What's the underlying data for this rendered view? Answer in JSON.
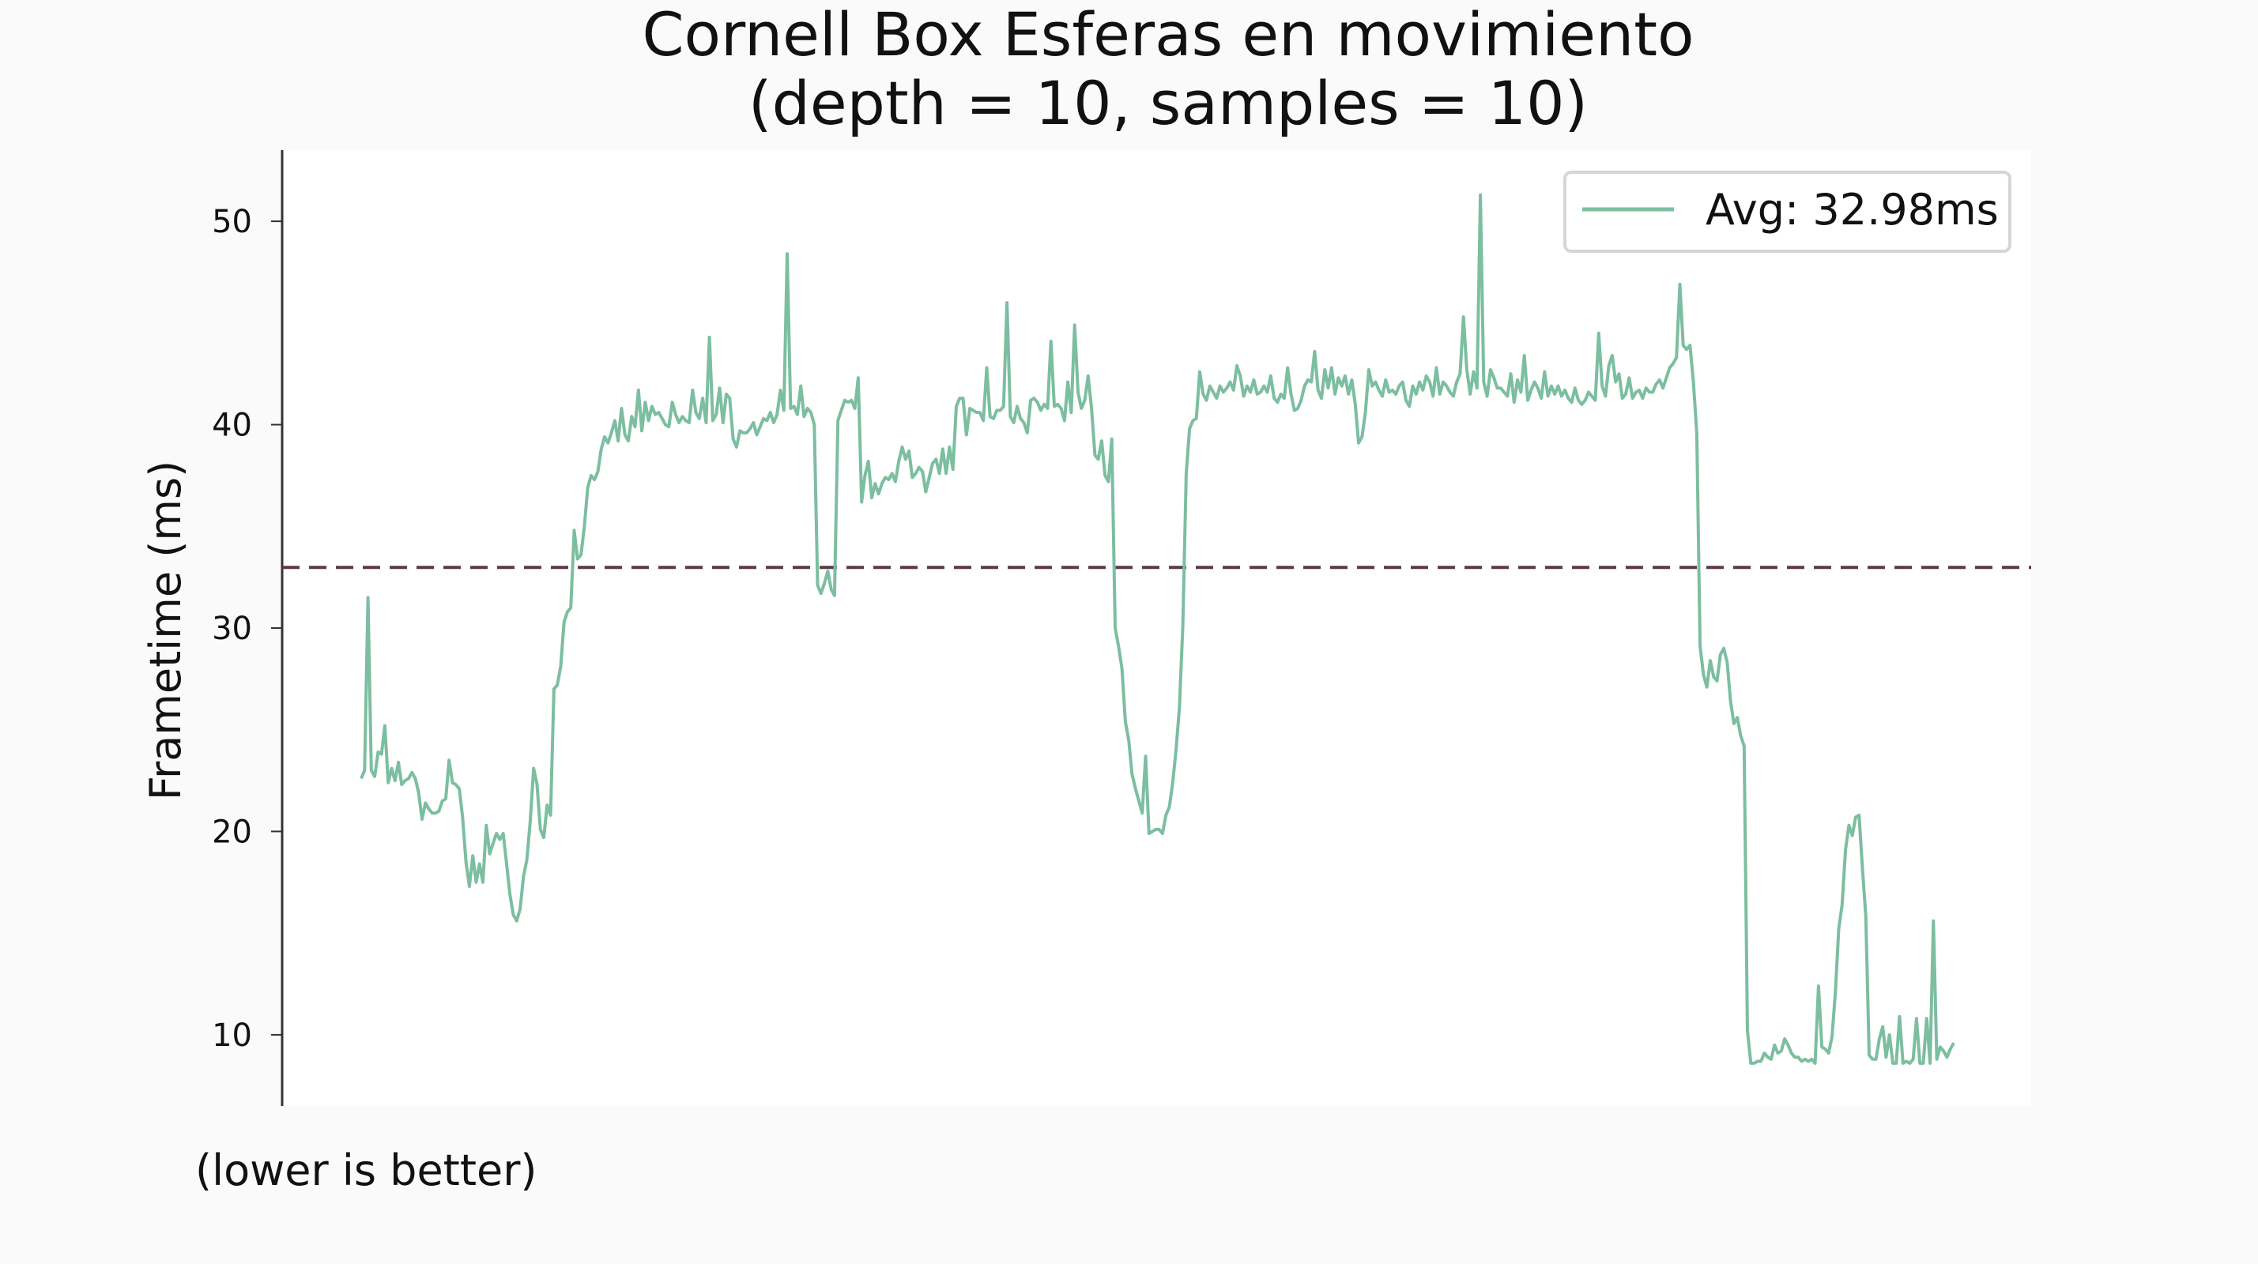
{
  "colors": {
    "background": "#fafafa",
    "plot_background": "#ffffff",
    "series": "#7cbea0",
    "average_line": "#5a3a4a",
    "axis": "#333333"
  },
  "chart_data": {
    "type": "line",
    "title": "Cornell Box Esferas en movimiento",
    "subtitle": "(depth = 10, samples = 10)",
    "ylabel": "Frametime (ms)",
    "xlabel": "",
    "note": "(lower is better)",
    "ylim": [
      6.5,
      53.5
    ],
    "yticks": [
      "10",
      "20",
      "30",
      "40",
      "50"
    ],
    "x_ticks_shown": false,
    "grid": false,
    "legend_position": "top-right",
    "average": 32.98,
    "series": [
      {
        "name": "Avg: 32.98ms",
        "x_count": 500,
        "values": [
          22.6,
          23.0,
          31.5,
          23.0,
          22.7,
          23.9,
          23.8,
          25.2,
          22.4,
          23.1,
          22.5,
          23.4,
          22.3,
          22.5,
          22.6,
          22.9,
          22.6,
          21.9,
          20.6,
          21.4,
          21.1,
          20.9,
          20.9,
          21.0,
          21.5,
          21.6,
          23.5,
          22.4,
          22.3,
          22.1,
          20.7,
          18.5,
          17.3,
          18.8,
          17.5,
          18.4,
          17.5,
          20.3,
          18.9,
          19.4,
          19.9,
          19.6,
          19.9,
          18.4,
          16.9,
          15.9,
          15.6,
          16.2,
          17.8,
          18.6,
          20.5,
          23.1,
          22.3,
          20.1,
          19.7,
          21.3,
          20.8,
          27.0,
          27.2,
          28.1,
          30.3,
          30.8,
          31.0,
          34.8,
          33.4,
          33.6,
          35.0,
          36.9,
          37.5,
          37.3,
          37.7,
          38.8,
          39.4,
          39.1,
          39.6,
          40.2,
          39.2,
          40.8,
          39.5,
          39.2,
          40.4,
          39.9,
          41.7,
          39.7,
          41.1,
          40.2,
          40.9,
          40.5,
          40.6,
          40.3,
          40.0,
          39.9,
          41.1,
          40.5,
          40.1,
          40.4,
          40.2,
          40.1,
          41.7,
          40.6,
          40.3,
          41.3,
          40.1,
          44.3,
          40.2,
          40.5,
          41.8,
          40.1,
          41.5,
          41.3,
          39.3,
          38.9,
          39.7,
          39.6,
          39.6,
          39.8,
          40.1,
          39.5,
          39.9,
          40.3,
          40.2,
          40.6,
          40.1,
          40.5,
          41.7,
          40.7,
          48.4,
          40.8,
          40.9,
          40.5,
          41.9,
          40.4,
          40.8,
          40.6,
          40.0,
          32.1,
          31.7,
          32.2,
          32.8,
          31.9,
          31.6,
          40.2,
          40.7,
          41.2,
          41.1,
          41.2,
          40.8,
          42.3,
          36.2,
          37.5,
          38.2,
          36.4,
          37.1,
          36.6,
          37.1,
          37.4,
          37.3,
          37.6,
          37.2,
          38.2,
          38.9,
          38.3,
          38.7,
          37.4,
          37.6,
          37.9,
          37.7,
          36.7,
          37.4,
          38.1,
          38.3,
          37.6,
          38.8,
          37.6,
          38.9,
          37.8,
          40.9,
          41.3,
          41.3,
          39.5,
          40.8,
          40.7,
          40.6,
          40.6,
          40.2,
          42.8,
          40.4,
          40.3,
          40.7,
          40.7,
          40.9,
          46.0,
          40.4,
          40.1,
          40.9,
          40.3,
          40.1,
          39.6,
          41.2,
          41.3,
          41.1,
          40.7,
          41.0,
          40.8,
          44.1,
          40.9,
          41.0,
          40.8,
          40.2,
          42.1,
          40.6,
          44.9,
          41.6,
          40.8,
          41.2,
          42.4,
          40.8,
          38.5,
          38.3,
          39.2,
          37.5,
          37.2,
          39.3,
          30.0,
          29.1,
          28.0,
          25.4,
          24.5,
          22.8,
          22.1,
          21.5,
          20.9,
          23.7,
          19.9,
          20.0,
          20.1,
          20.1,
          19.9,
          20.8,
          21.2,
          22.4,
          24.0,
          26.1,
          30.1,
          37.6,
          39.8,
          40.2,
          40.3,
          42.6,
          41.5,
          41.2,
          41.9,
          41.6,
          41.3,
          41.9,
          41.6,
          41.8,
          42.1,
          41.7,
          42.9,
          42.4,
          41.4,
          41.9,
          41.6,
          42.2,
          41.5,
          41.6,
          41.9,
          41.6,
          42.4,
          41.3,
          41.1,
          41.5,
          41.3,
          42.8,
          41.5,
          40.7,
          40.8,
          41.2,
          41.9,
          42.2,
          42.1,
          43.6,
          41.7,
          41.3,
          42.7,
          41.8,
          42.8,
          41.5,
          42.3,
          41.9,
          42.4,
          41.5,
          42.2,
          41.0,
          39.1,
          39.4,
          40.6,
          42.7,
          41.9,
          42.1,
          41.7,
          41.4,
          42.2,
          41.6,
          41.7,
          41.5,
          41.9,
          42.1,
          41.2,
          40.9,
          41.9,
          41.5,
          42.1,
          41.7,
          42.4,
          42.1,
          41.4,
          42.8,
          41.5,
          42.1,
          41.9,
          41.6,
          41.4,
          42.1,
          42.5,
          45.3,
          42.7,
          41.5,
          42.6,
          41.8,
          51.3,
          42.1,
          41.4,
          42.7,
          42.3,
          41.8,
          41.8,
          41.6,
          41.4,
          42.5,
          41.1,
          42.2,
          41.6,
          43.4,
          41.2,
          41.7,
          42.1,
          41.8,
          41.3,
          42.6,
          41.4,
          41.9,
          41.5,
          41.9,
          41.4,
          41.7,
          41.3,
          41.1,
          41.8,
          41.2,
          41.0,
          41.2,
          41.6,
          41.4,
          41.2,
          44.5,
          41.9,
          41.4,
          42.9,
          43.4,
          42.1,
          42.5,
          41.3,
          41.5,
          42.3,
          41.3,
          41.6,
          41.7,
          41.3,
          41.8,
          41.6,
          41.6,
          42.0,
          42.2,
          41.8,
          42.3,
          42.8,
          43.0,
          43.3,
          46.9,
          43.9,
          43.7,
          43.9,
          42.1,
          39.6,
          29.1,
          27.7,
          27.1,
          28.4,
          27.6,
          27.4,
          28.7,
          29.0,
          28.3,
          26.4,
          25.3,
          25.6,
          24.7,
          24.2,
          10.2,
          8.6,
          8.6,
          8.7,
          8.7,
          9.1,
          8.9,
          8.8,
          9.5,
          9.1,
          9.2,
          9.8,
          9.5,
          9.1,
          8.9,
          8.9,
          8.7,
          8.8,
          8.7,
          8.8,
          8.6,
          12.4,
          9.4,
          9.3,
          9.1,
          9.9,
          12.1,
          15.2,
          16.4,
          19.1,
          20.3,
          19.8,
          20.7,
          20.8,
          18.2,
          15.8,
          9.0,
          8.8,
          8.8,
          9.8,
          10.4,
          8.9,
          10.0,
          8.6,
          8.6,
          10.9,
          8.6,
          8.7,
          8.6,
          8.8,
          10.8,
          8.6,
          8.6,
          10.8,
          8.6,
          15.6,
          8.8,
          9.4,
          9.2,
          8.9,
          9.3,
          9.6
        ]
      }
    ]
  }
}
